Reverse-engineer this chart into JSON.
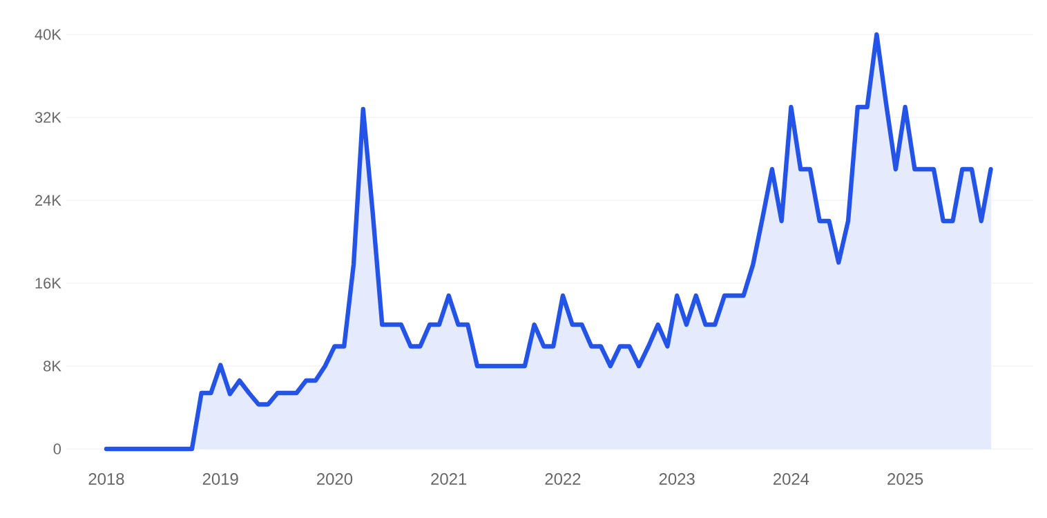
{
  "chart_data": {
    "type": "area",
    "series": [
      {
        "color": "#2453e8",
        "x": [
          "2018-01",
          "2018-02",
          "2018-03",
          "2018-04",
          "2018-05",
          "2018-06",
          "2018-07",
          "2018-08",
          "2018-09",
          "2018-10",
          "2018-11",
          "2018-12",
          "2019-01",
          "2019-02",
          "2019-03",
          "2019-04",
          "2019-05",
          "2019-06",
          "2019-07",
          "2019-08",
          "2019-09",
          "2019-10",
          "2019-11",
          "2019-12",
          "2020-01",
          "2020-02",
          "2020-03",
          "2020-04",
          "2020-05",
          "2020-06",
          "2020-07",
          "2020-08",
          "2020-09",
          "2020-10",
          "2020-11",
          "2020-12",
          "2021-01",
          "2021-02",
          "2021-03",
          "2021-04",
          "2021-05",
          "2021-06",
          "2021-07",
          "2021-08",
          "2021-09",
          "2021-10",
          "2021-11",
          "2021-12",
          "2022-01",
          "2022-02",
          "2022-03",
          "2022-04",
          "2022-05",
          "2022-06",
          "2022-07",
          "2022-08",
          "2022-09",
          "2022-10",
          "2022-11",
          "2022-12",
          "2023-01",
          "2023-02",
          "2023-03",
          "2023-04",
          "2023-05",
          "2023-06",
          "2023-07",
          "2023-08",
          "2023-09",
          "2023-10",
          "2023-11",
          "2023-12",
          "2024-01",
          "2024-02",
          "2024-03",
          "2024-04",
          "2024-05",
          "2024-06",
          "2024-07",
          "2024-08",
          "2024-09",
          "2024-10",
          "2024-11",
          "2024-12",
          "2025-01",
          "2025-02",
          "2025-03",
          "2025-04",
          "2025-05",
          "2025-06",
          "2025-07",
          "2025-08",
          "2025-09",
          "2025-10"
        ],
        "values": [
          0,
          0,
          0,
          0,
          0,
          0,
          0,
          0,
          0,
          0,
          5400,
          5400,
          8100,
          5300,
          6600,
          5400,
          4300,
          4300,
          5400,
          5400,
          5400,
          6600,
          6600,
          8000,
          9900,
          9900,
          17800,
          32800,
          22900,
          12000,
          12000,
          12000,
          9900,
          9900,
          12000,
          12000,
          14800,
          12000,
          12000,
          8000,
          8000,
          8000,
          8000,
          8000,
          8000,
          12000,
          9900,
          9900,
          14800,
          12000,
          12000,
          9900,
          9900,
          8000,
          9900,
          9900,
          8000,
          9900,
          12000,
          9900,
          14800,
          12000,
          14800,
          12000,
          12000,
          14800,
          14800,
          14800,
          17800,
          22300,
          27000,
          22000,
          33000,
          27000,
          27000,
          22000,
          22000,
          18000,
          22000,
          33000,
          33000,
          40000,
          33300,
          27000,
          33000,
          27000,
          27000,
          27000,
          22000,
          22000,
          27000,
          27000,
          22000,
          27000
        ]
      }
    ],
    "xlim": [
      "2017-08-25",
      "2026-02-15"
    ],
    "xticks": [
      "2018",
      "2019",
      "2020",
      "2021",
      "2022",
      "2023",
      "2024",
      "2025"
    ],
    "ylim": [
      0,
      40000
    ],
    "yticks": [
      0,
      {
        "value": 8000,
        "label": "8K"
      },
      {
        "value": 16000,
        "label": "16K"
      },
      {
        "value": 24000,
        "label": "24K"
      },
      {
        "value": 32000,
        "label": "32K"
      },
      {
        "value": 40000,
        "label": "40K"
      }
    ],
    "grid": "y"
  }
}
